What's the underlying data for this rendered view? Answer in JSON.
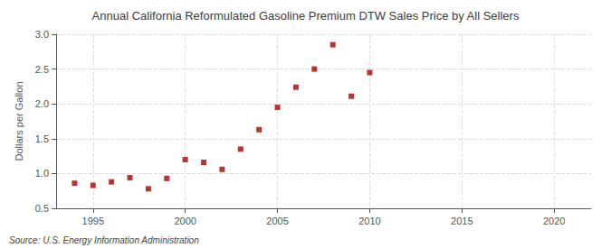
{
  "chart_data": {
    "type": "scatter",
    "title": "Annual California Reformulated Gasoline Premium DTW Sales Price by All Sellers",
    "ylabel": "Dollars per Gallon",
    "annotations": [
      "Source: U.S. Energy Information Administration"
    ],
    "x": [
      1994,
      1995,
      1996,
      1997,
      1998,
      1999,
      2000,
      2001,
      2002,
      2003,
      2004,
      2005,
      2006,
      2007,
      2008,
      2009,
      2010
    ],
    "values": [
      0.86,
      0.83,
      0.88,
      0.94,
      0.78,
      0.93,
      1.2,
      1.16,
      1.06,
      1.35,
      1.63,
      1.95,
      2.24,
      2.5,
      2.85,
      2.11,
      2.45
    ],
    "color": "#aa0000",
    "marker": "square",
    "xlim": [
      1993,
      2022
    ],
    "xticks": [
      1995,
      2000,
      2005,
      2010,
      2015,
      2020
    ],
    "ylim": [
      0.5,
      3.0
    ],
    "yticks": [
      0.5,
      {
        "value": 1.0,
        "label": "1.0"
      },
      1.5,
      {
        "value": 2.0,
        "label": "2.0"
      },
      2.5,
      {
        "value": 3.0,
        "label": "3.0"
      }
    ],
    "grid": true
  }
}
